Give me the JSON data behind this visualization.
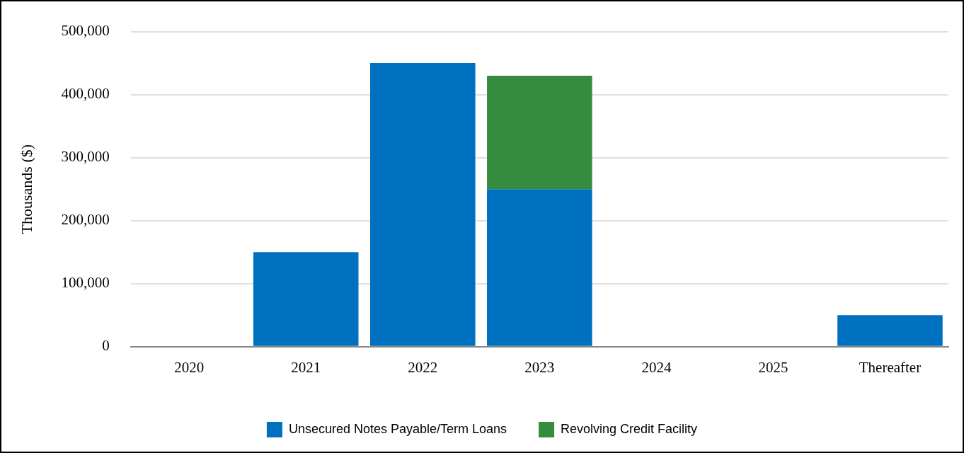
{
  "chart_data": {
    "type": "bar",
    "ylabel": "Thousands ($)",
    "categories": [
      "2020",
      "2021",
      "2022",
      "2023",
      "2024",
      "2025",
      "Thereafter"
    ],
    "series": [
      {
        "name": "Unsecured Notes Payable/Term Loans",
        "color": "#0070c0",
        "values": [
          0,
          150000,
          450000,
          250000,
          0,
          0,
          50000
        ]
      },
      {
        "name": "Revolving Credit Facility",
        "color": "#358b3e",
        "values": [
          0,
          0,
          0,
          180000,
          0,
          0,
          0
        ]
      }
    ],
    "stacked": true,
    "ylim": [
      0,
      500000
    ],
    "yticks": [
      0,
      {
        "value": 100000,
        "label": "100,000"
      },
      {
        "value": 200000,
        "label": "200,000"
      },
      {
        "value": 300000,
        "label": "300,000"
      },
      {
        "value": 400000,
        "label": "400,000"
      },
      {
        "value": 500000,
        "label": "500,000"
      }
    ],
    "grid": "y",
    "legend": "bottom"
  }
}
